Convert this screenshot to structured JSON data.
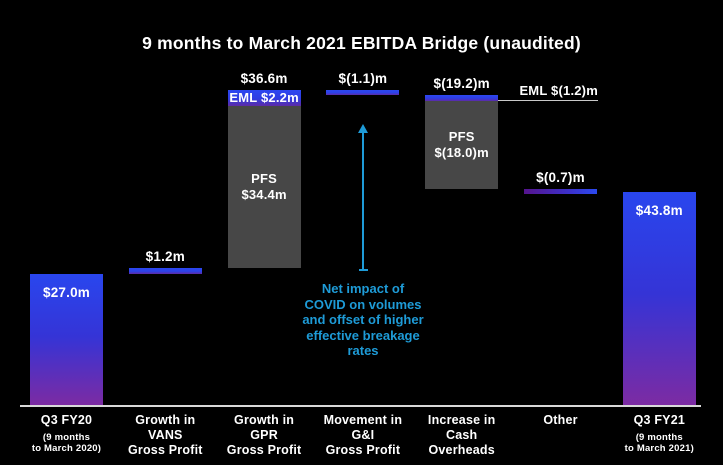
{
  "title": "9 months to March 2021 EBITDA Bridge (unaudited)",
  "colors": {
    "background": "#000000",
    "text": "#ffffff",
    "accent_blue": "#2b47ee",
    "accent_purple": "#7c2ba3",
    "segment_gray": "#474747",
    "annotation_cyan": "#1e9bd7",
    "axis_line": "#d9d9d9"
  },
  "chart_data": {
    "type": "bar",
    "subtype": "waterfall",
    "unit": "$m",
    "baseline_value": 0,
    "axis_range": [
      0,
      64.8
    ],
    "grid": false,
    "legend": false,
    "columns": [
      {
        "name": "q3-fy20",
        "category_lines": [
          "Q3 FY20"
        ],
        "subcategory_lines": [
          "(9 months",
          "to March 2020)"
        ],
        "kind": "total",
        "value": 27.0,
        "value_label": "$27.0m",
        "value_label_position": "inside"
      },
      {
        "name": "growth-vans-gross-profit",
        "category_lines": [
          "Growth in",
          "VANS",
          "Gross Profit"
        ],
        "kind": "delta",
        "value": 1.2,
        "value_label": "$1.2m",
        "value_label_position": "above"
      },
      {
        "name": "growth-gpr-gross-profit",
        "category_lines": [
          "Growth in",
          "GPR",
          "Gross Profit"
        ],
        "kind": "delta",
        "value": 36.6,
        "value_label": "$36.6m",
        "value_label_position": "above",
        "segments": [
          {
            "name": "eml",
            "value": 2.2,
            "style": "accent",
            "label_lines": [
              "EML $2.2m"
            ]
          },
          {
            "name": "pfs",
            "value": 34.4,
            "style": "gray",
            "label_lines": [
              "PFS",
              "$34.4m"
            ]
          }
        ]
      },
      {
        "name": "movement-gi-gross-profit",
        "category_lines": [
          "Movement in",
          "G&I",
          "Gross Profit"
        ],
        "kind": "delta",
        "value": -1.1,
        "value_label": "$(1.1)m",
        "value_label_position": "above"
      },
      {
        "name": "increase-cash-overheads",
        "category_lines": [
          "Increase in",
          "Cash",
          "Overheads"
        ],
        "kind": "delta",
        "value": -19.2,
        "value_label": "$(19.2)m",
        "value_label_position": "above",
        "segments": [
          {
            "name": "eml",
            "value": -1.2,
            "style": "accent",
            "callout_label": "EML $(1.2)m"
          },
          {
            "name": "pfs",
            "value": -18.0,
            "style": "gray",
            "label_lines": [
              "PFS",
              "$(18.0)m"
            ]
          }
        ]
      },
      {
        "name": "other",
        "category_lines": [
          "Other"
        ],
        "kind": "delta",
        "value": -0.7,
        "value_label": "$(0.7)m",
        "value_label_position": "above",
        "bar_style": "horizontal-gradient"
      },
      {
        "name": "q3-fy21",
        "category_lines": [
          "Q3 FY21"
        ],
        "subcategory_lines": [
          "(9 months",
          "to March 2021)"
        ],
        "kind": "total",
        "value": 43.8,
        "value_label": "$43.8m",
        "value_label_position": "inside"
      }
    ],
    "annotation": {
      "text_lines": [
        "Net impact of",
        "COVID on volumes",
        "and offset of higher",
        "effective breakage",
        "rates"
      ],
      "arrow_direction": "up",
      "target_column": "movement-gi-gross-profit"
    }
  }
}
